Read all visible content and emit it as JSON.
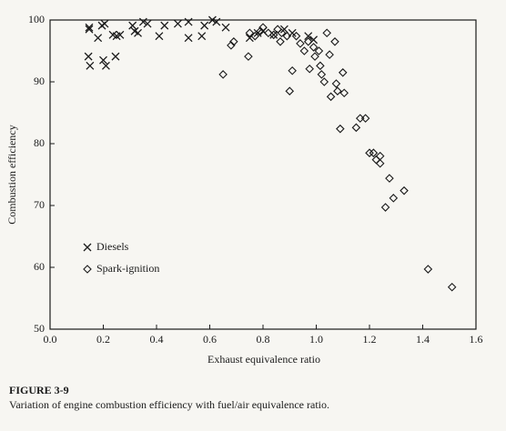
{
  "chart_data": {
    "type": "scatter",
    "x_label": "Exhaust equivalence ratio",
    "y_label": "Combustion efficiency",
    "caption_title": "FIGURE 3-9",
    "caption": "Variation of engine combustion efficiency with fuel/air equivalence ratio.",
    "xlim": [
      0.0,
      1.6
    ],
    "ylim": [
      50,
      100
    ],
    "xticks": [
      {
        "value": 0,
        "label": "0.0"
      },
      0.2,
      0.4,
      0.6,
      0.8,
      {
        "value": 1,
        "label": "1.0"
      },
      1.2,
      1.4,
      1.6
    ],
    "yticks": [
      50,
      60,
      70,
      80,
      90,
      100
    ],
    "series": [
      {
        "name": "Diesels",
        "color": "#1a1a1a",
        "marker": "x",
        "x": [
          0.147,
          0.144,
          0.15,
          0.2,
          0.21,
          0.246,
          0.147,
          0.18,
          0.195,
          0.205,
          0.236,
          0.25,
          0.263,
          0.31,
          0.318,
          0.33,
          0.35,
          0.366,
          0.41,
          0.43,
          0.48,
          0.52,
          0.52,
          0.57,
          0.58,
          0.61,
          0.625,
          0.66,
          0.75,
          0.78,
          0.8,
          0.84,
          0.88,
          0.91,
          0.97,
          0.99
        ],
        "values": [
          98.5,
          94.1,
          92.6,
          93.5,
          92.6,
          94.1,
          98.8,
          97.1,
          99.1,
          99.4,
          97.6,
          97.4,
          97.6,
          99.1,
          98.2,
          97.9,
          99.7,
          99.4,
          97.4,
          99.1,
          99.4,
          99.7,
          97.1,
          97.4,
          99.1,
          100,
          99.7,
          98.8,
          97.1,
          97.9,
          98.2,
          97.6,
          98.5,
          97.9,
          97.4,
          96.8
        ]
      },
      {
        "name": "Spark-ignition",
        "color": "#1a1a1a",
        "marker": "diamond",
        "x": [
          0.65,
          0.68,
          0.69,
          0.745,
          0.75,
          0.77,
          0.79,
          0.8,
          0.82,
          0.84,
          0.855,
          0.865,
          0.87,
          0.89,
          0.9,
          0.91,
          0.925,
          0.94,
          0.955,
          0.97,
          0.975,
          0.99,
          0.995,
          1.01,
          1.015,
          1.02,
          1.03,
          1.04,
          1.05,
          1.055,
          1.07,
          1.075,
          1.08,
          1.1,
          1.105,
          1.09,
          1.15,
          1.165,
          1.185,
          1.2,
          1.215,
          1.225,
          1.24,
          1.24,
          1.275,
          1.26,
          1.29,
          1.33,
          1.42,
          1.51
        ],
        "values": [
          91.2,
          95.9,
          96.5,
          94.1,
          97.9,
          97.4,
          98.2,
          98.8,
          97.9,
          97.6,
          98.5,
          96.5,
          97.9,
          97.4,
          88.5,
          91.8,
          97.4,
          96.2,
          95.0,
          96.5,
          92.1,
          95.6,
          94.1,
          95.0,
          92.6,
          91.2,
          90.0,
          97.9,
          94.4,
          87.6,
          96.5,
          89.7,
          88.5,
          91.5,
          88.2,
          82.4,
          82.6,
          84.1,
          84.1,
          78.5,
          78.5,
          77.4,
          76.8,
          78.0,
          74.4,
          69.7,
          71.2,
          72.4,
          59.7,
          56.8
        ]
      }
    ]
  }
}
